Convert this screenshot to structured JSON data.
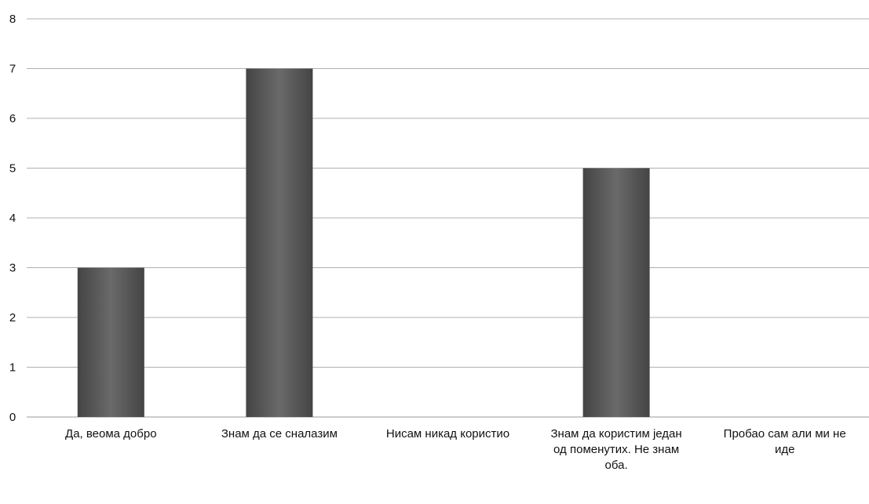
{
  "chart_data": {
    "type": "bar",
    "categories": [
      "Да, веома добро",
      "Знам да се сналазим",
      "Нисам никад користио",
      "Знам да користим један од поменутих. Не знам оба.",
      "Пробао сам али ми не иде"
    ],
    "values": [
      3,
      7,
      0,
      5,
      0
    ],
    "title": "",
    "xlabel": "",
    "ylabel": "",
    "ylim": [
      0,
      8
    ],
    "yticks": [
      0,
      1,
      2,
      3,
      4,
      5,
      6,
      7,
      8
    ],
    "grid": true,
    "legend": "none",
    "bar_color": "#555555"
  }
}
